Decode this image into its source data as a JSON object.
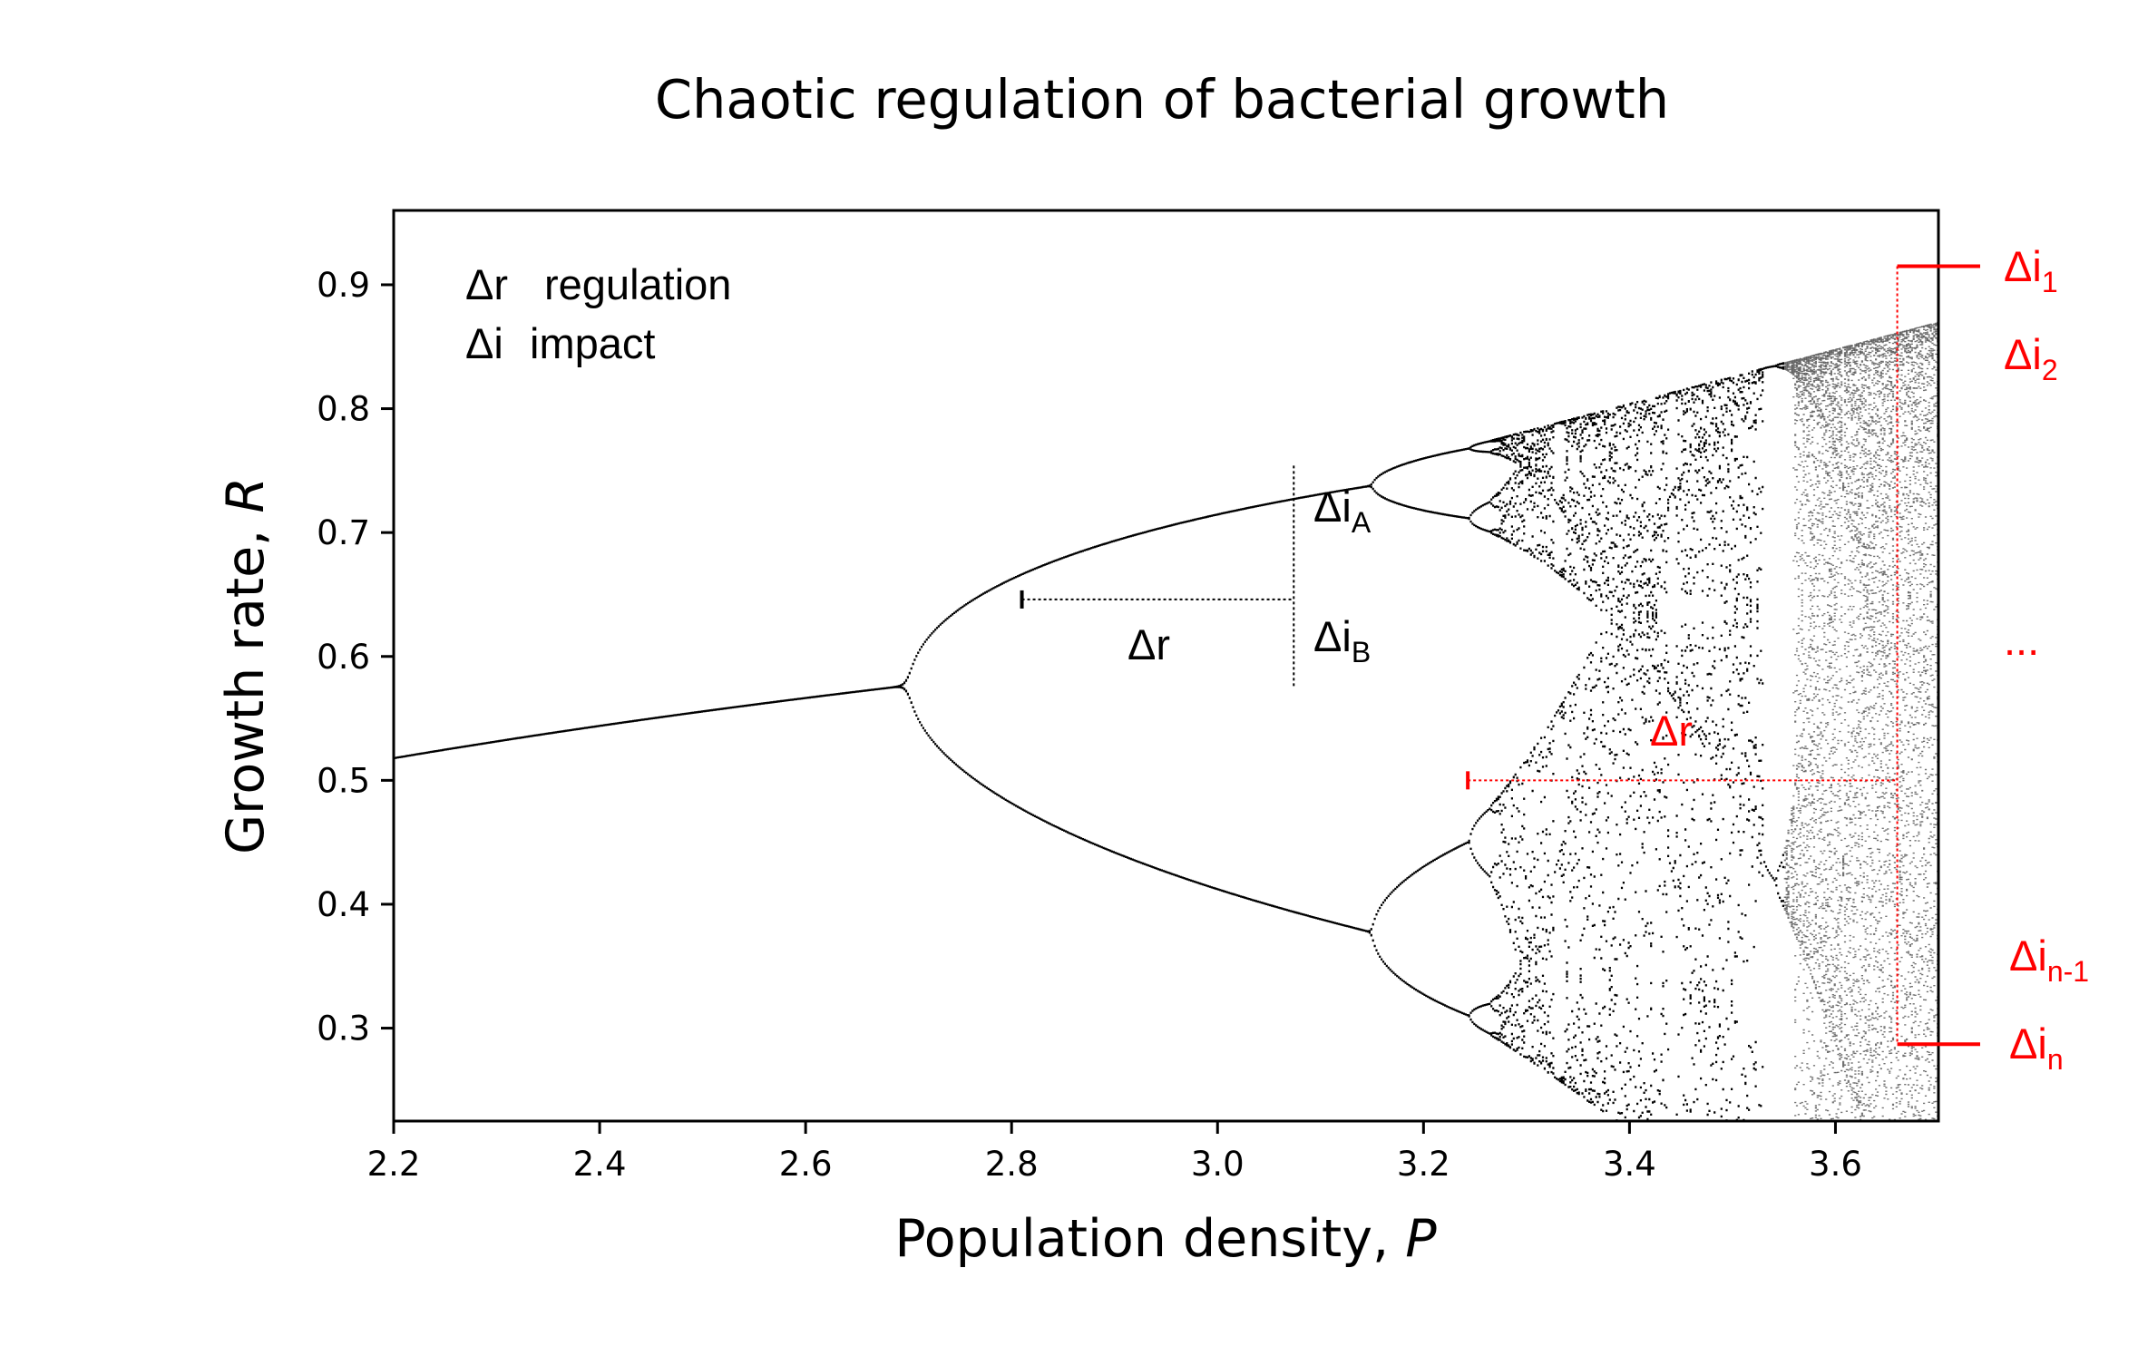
{
  "chart_data": {
    "type": "scatter",
    "title": "Chaotic regulation of bacterial growth",
    "xlabel_main": "Population density, ",
    "xlabel_var": "P",
    "ylabel_main": "Growth rate, ",
    "ylabel_var": "R",
    "xlim": [
      2.2,
      3.7
    ],
    "ylim": [
      0.225,
      0.96
    ],
    "xticks": [
      2.2,
      2.4,
      2.6,
      2.8,
      3.0,
      3.2,
      3.4,
      3.6
    ],
    "xtick_labels": [
      "2.2",
      "2.4",
      "2.6",
      "2.8",
      "3.0",
      "3.2",
      "3.4",
      "3.6"
    ],
    "yticks": [
      0.3,
      0.4,
      0.5,
      0.6,
      0.7,
      0.8,
      0.9
    ],
    "ytick_labels": [
      "0.3",
      "0.4",
      "0.5",
      "0.6",
      "0.7",
      "0.8",
      "0.9"
    ],
    "grid": false,
    "series": [
      {
        "description_kind": "bifurcation diagram",
        "color": "#000000",
        "sample_points": [
          {
            "x": 2.2,
            "y": 0.545
          },
          {
            "x": 2.4,
            "y": 0.583
          },
          {
            "x": 2.6,
            "y": 0.615
          },
          {
            "x": 2.8,
            "y": 0.643
          },
          {
            "x": 3.0,
            "y": 0.667
          },
          {
            "x": 3.2,
            "y": 0.799
          },
          {
            "x": 3.2,
            "y": 0.513
          },
          {
            "x": 3.45,
            "y": 0.852
          },
          {
            "x": 3.45,
            "y": 0.44
          },
          {
            "x": 3.7,
            "y": 0.925
          },
          {
            "x": 3.7,
            "y": 0.26
          }
        ]
      }
    ],
    "legend_text": {
      "line1_sym": "Δr",
      "line1_word": "regulation",
      "line2_sym": "Δi",
      "line2_word": "impact"
    },
    "annotations_black": {
      "delta_r": "Δr",
      "delta_iA_main": "Δi",
      "delta_iA_sub": "A",
      "delta_iB_main": "Δi",
      "delta_iB_sub": "B"
    },
    "annotations_red": {
      "delta_r": "Δr",
      "i1_main": "Δi",
      "i1_sub": "1",
      "i2_main": "Δi",
      "i2_sub": "2",
      "ellipsis": "...",
      "in1_main": "Δi",
      "in1_sub": "n-1",
      "in_main": "Δi",
      "in_sub": "n"
    },
    "colors": {
      "data": "#000000",
      "highlight": "#ff0000"
    },
    "markers": {
      "black_regulation": {
        "x_start": 2.81,
        "x_end": 3.074,
        "y": 0.646
      },
      "black_impact": {
        "x": 3.074,
        "y_low": 0.574,
        "y_high": 0.754
      },
      "red_regulation": {
        "x_start": 3.243,
        "x_end": 3.66,
        "y": 0.5
      },
      "red_impact": {
        "x": 3.66,
        "y_low": 0.287,
        "y_high": 0.915
      }
    }
  }
}
